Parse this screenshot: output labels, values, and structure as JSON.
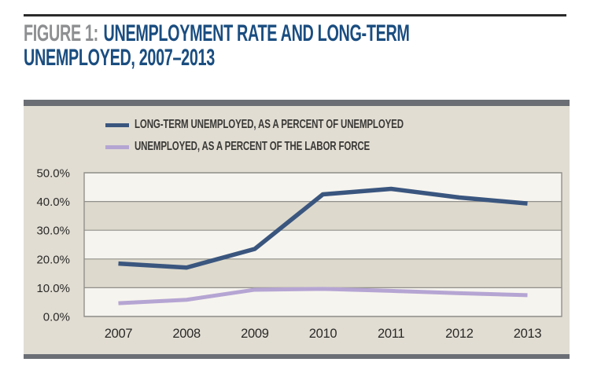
{
  "title": {
    "prefix": "FIGURE 1:",
    "line1": "UNEMPLOYMENT RATE AND LONG-TERM",
    "line2": "UNEMPLOYED, 2007–2013"
  },
  "chart_data": {
    "type": "line",
    "title": "FIGURE 1: UNEMPLOYMENT RATE AND LONG-TERM UNEMPLOYED, 2007–2013",
    "categories": [
      "2007",
      "2008",
      "2009",
      "2010",
      "2011",
      "2012",
      "2013"
    ],
    "series": [
      {
        "name": "LONG-TERM UNEMPLOYED, AS A PERCENT OF UNEMPLOYED",
        "color": "#3a567f",
        "stroke_width": 5.5,
        "values": [
          18.4,
          17.0,
          23.5,
          42.5,
          44.4,
          41.4,
          39.3
        ]
      },
      {
        "name": "UNEMPLOYED, AS A PERCENT OF THE LABOR FORCE",
        "color": "#b5a5d3",
        "stroke_width": 5,
        "values": [
          4.6,
          5.8,
          9.3,
          9.6,
          8.9,
          8.1,
          7.4
        ]
      }
    ],
    "xlabel": "",
    "ylabel": "",
    "ylim": [
      0,
      50
    ],
    "ytick_step": 10,
    "ytick_labels": [
      "0.0%",
      "10.0%",
      "20.0%",
      "30.0%",
      "40.0%",
      "50.0%"
    ],
    "grid": "horizontal",
    "legend_position": "top-left",
    "theme": {
      "band_colors": [
        "#f6f4ee",
        "#ddd9cc"
      ],
      "grid_color": "#91908a",
      "axis_text_color": "#2b2a28",
      "panel_bg": "#e1ddd3",
      "bar_color": "#6b6f75",
      "title_blue": "#1a4d80",
      "title_gray": "#8d8f91",
      "rule_color": "#2b2b2b"
    }
  }
}
